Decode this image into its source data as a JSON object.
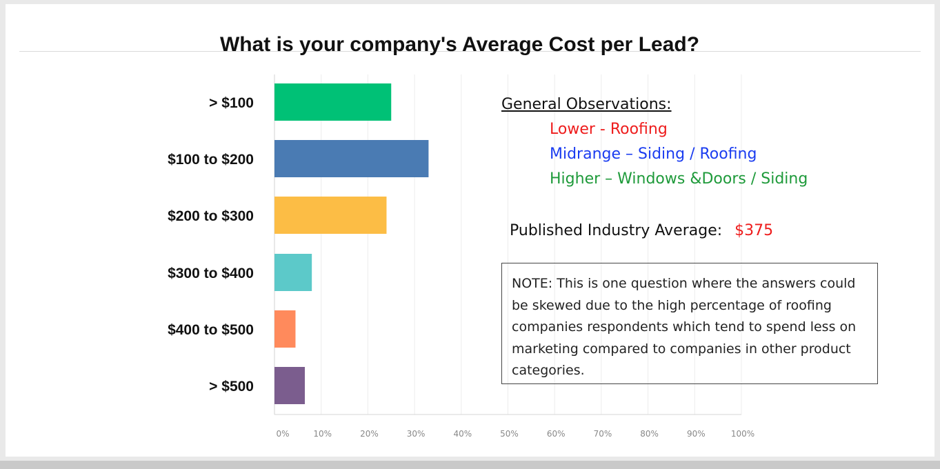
{
  "chart_data": {
    "type": "bar",
    "orientation": "horizontal",
    "title": "What is your company's Average Cost per Lead?",
    "categories": [
      "> $100",
      "$100 to $200",
      "$200 to $300",
      "$300 to $400",
      "$400 to $500",
      "> $500"
    ],
    "values": [
      25,
      33,
      24,
      8,
      4.5,
      6.5
    ],
    "value_unit": "%",
    "xlim": [
      0,
      100
    ],
    "x_ticks": [
      "0%",
      "10%",
      "20%",
      "30%",
      "40%",
      "50%",
      "60%",
      "70%",
      "80%",
      "90%",
      "100%"
    ],
    "grid": true,
    "bar_colors": [
      "#00c176",
      "#4a7bb3",
      "#fcbd45",
      "#5cc9c9",
      "#ff8a5c",
      "#7b5d8e"
    ]
  },
  "observations": {
    "title": "General Observations:",
    "items": [
      {
        "text": "Lower - Roofing",
        "color": "#ee1c1c"
      },
      {
        "text": "Midrange – Siding / Roofing",
        "color": "#1a3cf0"
      },
      {
        "text": "Higher – Windows &Doors / Siding",
        "color": "#1e9a3a"
      }
    ]
  },
  "industry_average": {
    "label": "Published Industry Average:",
    "value": "$375",
    "value_color": "#ee1c1c"
  },
  "note": {
    "text": "NOTE: This is one question where the answers could be skewed due to the high percentage of roofing companies respondents which tend to spend less on marketing compared to companies in other product categories."
  }
}
